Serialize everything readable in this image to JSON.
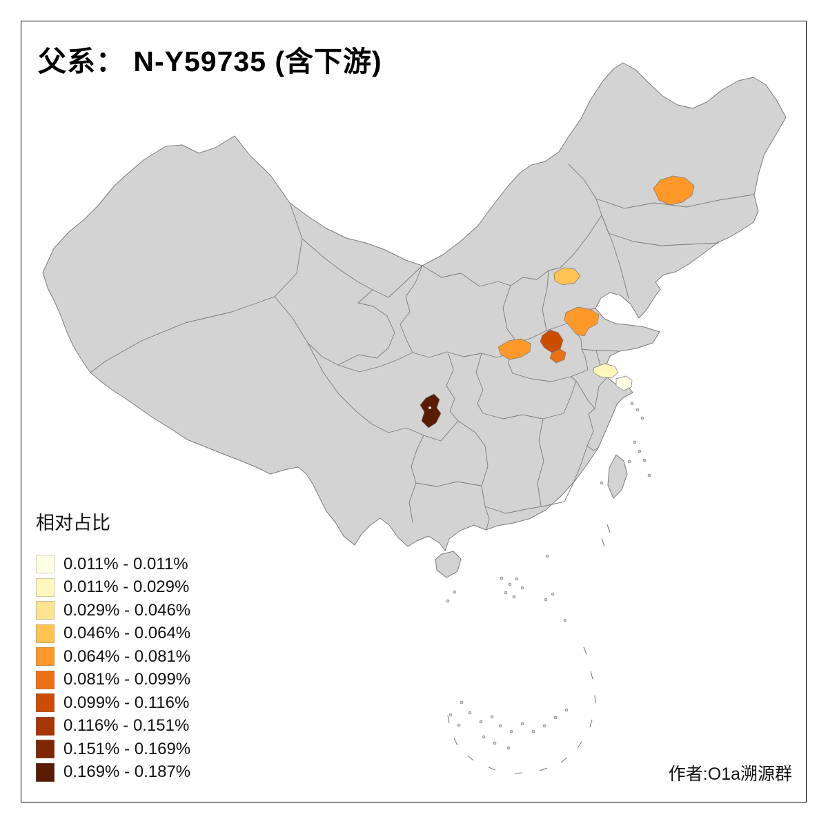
{
  "title": "父系： N-Y59735 (含下游)",
  "legend": {
    "title": "相对占比",
    "items": [
      {
        "label": "0.011% - 0.011%",
        "color": "#FFFFE5"
      },
      {
        "label": "0.011% - 0.029%",
        "color": "#FFF7BC"
      },
      {
        "label": "0.029% - 0.046%",
        "color": "#FEE391"
      },
      {
        "label": "0.046% - 0.064%",
        "color": "#FEC44F"
      },
      {
        "label": "0.064% - 0.081%",
        "color": "#FE9929"
      },
      {
        "label": "0.081% - 0.099%",
        "color": "#EC7014"
      },
      {
        "label": "0.099% - 0.116%",
        "color": "#CC4C02"
      },
      {
        "label": "0.116% - 0.151%",
        "color": "#A63603"
      },
      {
        "label": "0.151% - 0.169%",
        "color": "#7F2704"
      },
      {
        "label": "0.169% - 0.187%",
        "color": "#5A1B03"
      }
    ]
  },
  "author": "作者:O1a溯源群",
  "map": {
    "land_fill": "#D3D3D3",
    "boundary_color": "#7A7A7A",
    "background": "#FFFFFF",
    "regions": {
      "region-harbin": {
        "color": "#FE9929"
      },
      "region-hebei": {
        "color": "#FEC44F"
      },
      "region-shandong": {
        "color": "#FE9929"
      },
      "region-henan-west": {
        "color": "#FE9929"
      },
      "region-henan-central-dark": {
        "color": "#CC4C02"
      },
      "region-henan-central-mid": {
        "color": "#EC7014"
      },
      "region-jiangsu-pale": {
        "color": "#FFF7BC"
      },
      "region-shanghai-pale": {
        "color": "#FFFFE5"
      },
      "region-guizhou-dark": {
        "color": "#5A1B03"
      }
    }
  }
}
